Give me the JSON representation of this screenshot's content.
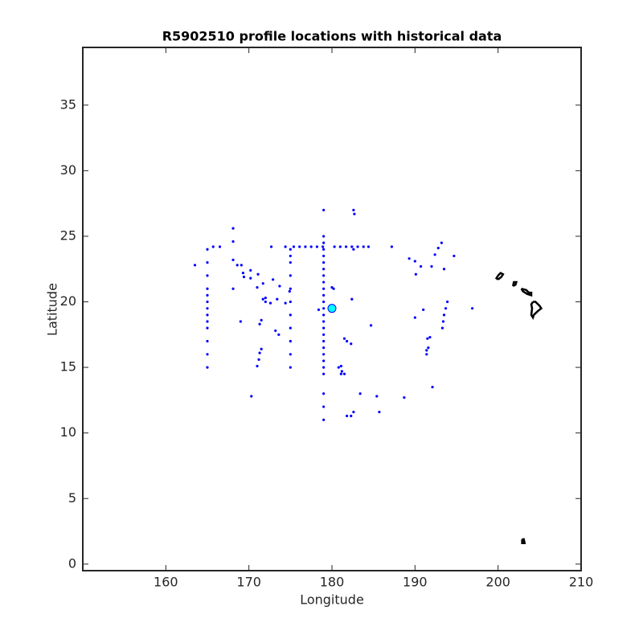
{
  "chart_data": {
    "type": "scatter",
    "title": "R5902510 profile locations with historical data",
    "xlabel": "Longitude",
    "ylabel": "Latitude",
    "xlim": [
      150,
      210
    ],
    "ylim": [
      -0.5,
      39.4
    ],
    "xticks": [
      160,
      170,
      180,
      190,
      200,
      210
    ],
    "yticks": [
      0,
      5,
      10,
      15,
      20,
      25,
      30,
      35
    ],
    "series": [
      {
        "mode": "markers",
        "color": "#0000ff",
        "x": [
          165,
          165,
          165,
          165,
          165,
          165,
          165,
          165,
          165,
          165,
          165,
          165,
          165,
          179,
          179,
          179,
          179,
          179,
          179,
          179,
          179,
          179,
          179,
          179,
          179,
          179,
          179,
          179,
          179,
          179,
          179,
          179,
          179,
          179,
          179,
          179,
          179,
          179,
          179,
          175,
          175,
          175,
          175,
          175,
          175,
          175,
          175,
          175,
          175,
          175,
          175.4,
          176.1,
          176.8,
          177.5,
          178.2,
          178.9,
          180.3,
          181,
          181.7,
          182.4,
          183.1,
          183.8,
          184.4,
          172.7,
          174.4,
          187.2,
          165.7,
          166.5,
          168.1,
          168.1,
          168.1,
          168.6,
          169.1,
          169.3,
          169.4,
          170.2,
          170.2,
          168.1,
          163.5,
          171.1,
          171,
          171.7,
          171.7,
          172,
          172,
          172.6,
          172.9,
          173.4,
          173.7,
          174.4,
          174.9,
          169,
          171.5,
          171.3,
          171.5,
          171.3,
          171.2,
          171,
          170.3,
          173.2,
          173.6,
          180,
          180.2,
          178.4,
          182.4,
          181.5,
          181.8,
          182.3,
          180.8,
          181.1,
          181.2,
          181.5,
          181.1,
          184.7,
          183.4,
          185.4,
          185.7,
          182.6,
          181.8,
          182.3,
          188.7,
          182.6,
          182.7,
          182.6,
          189.3,
          190,
          190.7,
          190.1,
          192,
          192.4,
          192.8,
          193.2,
          194.7,
          193.5,
          191,
          190,
          193.9,
          193.7,
          193.5,
          193.4,
          193.3,
          196.9,
          191.8,
          191.5,
          191.6,
          191.4,
          191.4,
          192.1
        ],
        "y": [
          24,
          23,
          22,
          21,
          20.5,
          20,
          19.5,
          19,
          18.5,
          18,
          17,
          16,
          15,
          27,
          25,
          24.5,
          24,
          23.5,
          23,
          22.5,
          22,
          21.5,
          21,
          20.5,
          20,
          19.5,
          19,
          18.5,
          18,
          17.5,
          17,
          16.5,
          16,
          15.5,
          15,
          14.5,
          13,
          12,
          11,
          24,
          23.5,
          23,
          22,
          21,
          20,
          19,
          18,
          17,
          16,
          15,
          24.2,
          24.2,
          24.2,
          24.2,
          24.2,
          24.2,
          24.2,
          24.2,
          24.2,
          24.2,
          24.2,
          24.2,
          24.2,
          24.2,
          24.2,
          24.2,
          24.2,
          24.2,
          25.6,
          24.6,
          23.2,
          22.8,
          22.8,
          22.2,
          21.9,
          22.4,
          21.8,
          21,
          22.8,
          22.1,
          21.1,
          21.4,
          20.2,
          20.3,
          20,
          19.9,
          21.7,
          20.2,
          21.2,
          19.9,
          20.8,
          18.5,
          18.6,
          18.3,
          16.4,
          16.1,
          15.6,
          15.1,
          12.8,
          17.8,
          17.5,
          21.1,
          21,
          19.4,
          20.2,
          17.2,
          17,
          16.8,
          15,
          15.1,
          14.7,
          14.5,
          14.5,
          18.2,
          13,
          12.8,
          11.6,
          11.6,
          11.3,
          11.3,
          12.7,
          27,
          26.7,
          24,
          23.3,
          23.1,
          22.7,
          22.1,
          22.7,
          23.6,
          24.1,
          24.5,
          23.5,
          22.5,
          19.4,
          18.8,
          20,
          19.5,
          19,
          18.5,
          18,
          19.5,
          17.3,
          17.2,
          16.5,
          16.3,
          16,
          13.5
        ]
      },
      {
        "mode": "markers",
        "color": "#00ffff",
        "x": [
          180
        ],
        "y": [
          19.5
        ]
      },
      {
        "mode": "lines",
        "color": "#000000",
        "x": [
          200,
          200.4,
          200.6,
          200.3,
          200,
          199.8,
          200,
          null,
          201.8,
          202.1,
          202.2,
          201.9,
          201.8,
          null,
          202.8,
          203.4,
          203.7,
          204,
          204,
          203.5,
          203,
          202.8,
          null,
          204.2,
          204.5,
          205,
          205.2,
          204.8,
          204.3,
          204.2,
          204,
          204.1,
          204,
          204.2,
          null,
          202.9,
          203.1,
          203.2,
          202.9,
          202.9
        ],
        "y": [
          21.7,
          21.9,
          22.1,
          22.2,
          22,
          21.8,
          21.7,
          null,
          21.2,
          21.3,
          21.5,
          21.5,
          21.2,
          null,
          21,
          20.9,
          20.7,
          20.7,
          20.5,
          20.6,
          20.8,
          21,
          null,
          20,
          20,
          19.7,
          19.5,
          19.3,
          19,
          18.8,
          19,
          19.5,
          19.8,
          20,
          null,
          1.9,
          1.9,
          1.6,
          1.6,
          1.9
        ]
      }
    ]
  }
}
